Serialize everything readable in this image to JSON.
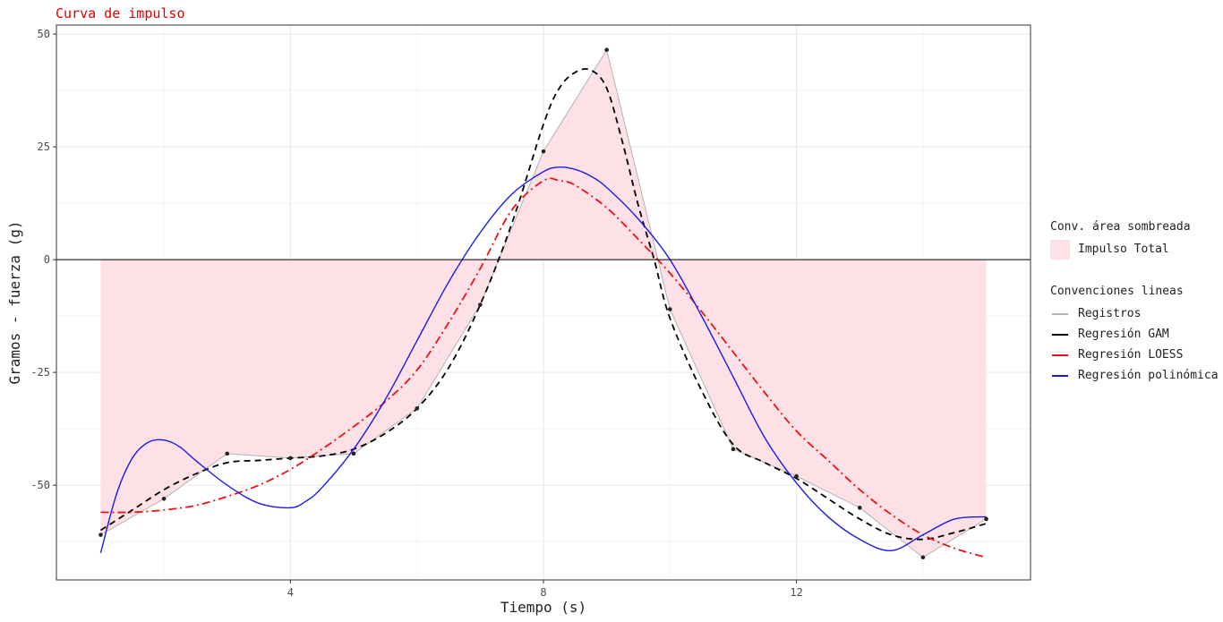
{
  "chart_data": {
    "type": "line",
    "title": "Curva de impulso",
    "xlabel": "Tiempo (s)",
    "ylabel": "Gramos - fuerza (g)",
    "xlim": [
      0.3,
      15.7
    ],
    "ylim": [
      -71,
      52
    ],
    "x_ticks": [
      4,
      8,
      12
    ],
    "y_ticks": [
      -50,
      -25,
      0,
      25,
      50
    ],
    "grid": true,
    "legend_position": "right",
    "area": {
      "name": "Impulso Total",
      "legend_title": "Conv. área sombreada",
      "color": "#fde1e6",
      "x_range": [
        1,
        15
      ],
      "baseline": 0
    },
    "lines_legend_title": "Convenciones lineas",
    "series": [
      {
        "name": "Registros",
        "color": "#b3b3b3",
        "style": "solid",
        "points": true,
        "x": [
          1,
          2,
          3,
          4,
          5,
          6,
          7,
          8,
          9,
          10,
          11,
          12,
          13,
          14,
          15
        ],
        "y": [
          -61,
          -53,
          -43,
          -44,
          -43,
          -33,
          -10,
          24,
          46.5,
          -11,
          -42,
          -48,
          -55,
          -66,
          -57.5
        ]
      },
      {
        "name": "Regresión GAM",
        "color": "#000000",
        "style": "dashed",
        "x": [
          1,
          1.5,
          2,
          2.5,
          3,
          3.5,
          4,
          4.5,
          5,
          5.5,
          6,
          6.5,
          7,
          7.5,
          8,
          8.25,
          8.5,
          8.75,
          9,
          9.25,
          9.5,
          9.75,
          10,
          10.5,
          11,
          11.5,
          12,
          12.5,
          13,
          13.5,
          14,
          14.5,
          15
        ],
        "y": [
          -60,
          -55.5,
          -51,
          -47.5,
          -45,
          -44.5,
          -44,
          -43.5,
          -42,
          -38.5,
          -33,
          -24,
          -10,
          8,
          30,
          38,
          41.5,
          42,
          38,
          26,
          12,
          0,
          -13,
          -29,
          -41,
          -45,
          -48.5,
          -53,
          -57.5,
          -61,
          -62,
          -60.5,
          -58.5
        ]
      },
      {
        "name": "Regresión LOESS",
        "color": "#ee1111",
        "style": "dashdot",
        "x": [
          1,
          1.5,
          2,
          2.5,
          3,
          3.5,
          4,
          4.5,
          5,
          5.5,
          6,
          6.5,
          7,
          7.5,
          8,
          8.25,
          8.5,
          9,
          9.5,
          10,
          10.5,
          11,
          11.5,
          12,
          12.5,
          13,
          13.5,
          14,
          14.5,
          15
        ],
        "y": [
          -56,
          -56,
          -55.5,
          -54.5,
          -52.5,
          -50,
          -46.5,
          -42,
          -37,
          -31.5,
          -24.5,
          -14,
          -2,
          11,
          17.5,
          17.5,
          16.5,
          11.5,
          4.5,
          -3,
          -11.5,
          -20.5,
          -29.5,
          -38,
          -44.5,
          -51,
          -56.5,
          -61,
          -64,
          -66
        ]
      },
      {
        "name": "Regresión polinómica",
        "color": "#1a1aee",
        "style": "solid",
        "x": [
          1,
          1.25,
          1.5,
          1.75,
          2,
          2.25,
          2.5,
          3,
          3.5,
          4,
          4.25,
          4.5,
          5,
          5.5,
          6,
          6.5,
          7,
          7.5,
          8,
          8.25,
          8.5,
          8.75,
          9,
          9.5,
          10,
          10.5,
          11,
          11.5,
          12,
          12.5,
          13,
          13.5,
          14,
          14.5,
          15
        ],
        "y": [
          -65,
          -52,
          -44,
          -40.5,
          -40,
          -41.5,
          -44.5,
          -50,
          -54,
          -55,
          -53.5,
          -50.5,
          -42,
          -31,
          -18,
          -5,
          6,
          14.5,
          19.5,
          20.5,
          20,
          18.5,
          16,
          9,
          0,
          -12.5,
          -26,
          -39.5,
          -49.5,
          -57,
          -62,
          -64.5,
          -61,
          -57.5,
          -57
        ]
      }
    ]
  },
  "legend": {
    "area_title": "Conv. área sombreada",
    "area_label": "Impulso Total",
    "lines_title": "Convenciones lineas",
    "lines": [
      "Registros",
      "Regresión GAM",
      "Regresión LOESS",
      "Regresión polinómica"
    ],
    "line_colors": [
      "#b3b3b3",
      "#000000",
      "#ee1111",
      "#1a1aee"
    ]
  }
}
